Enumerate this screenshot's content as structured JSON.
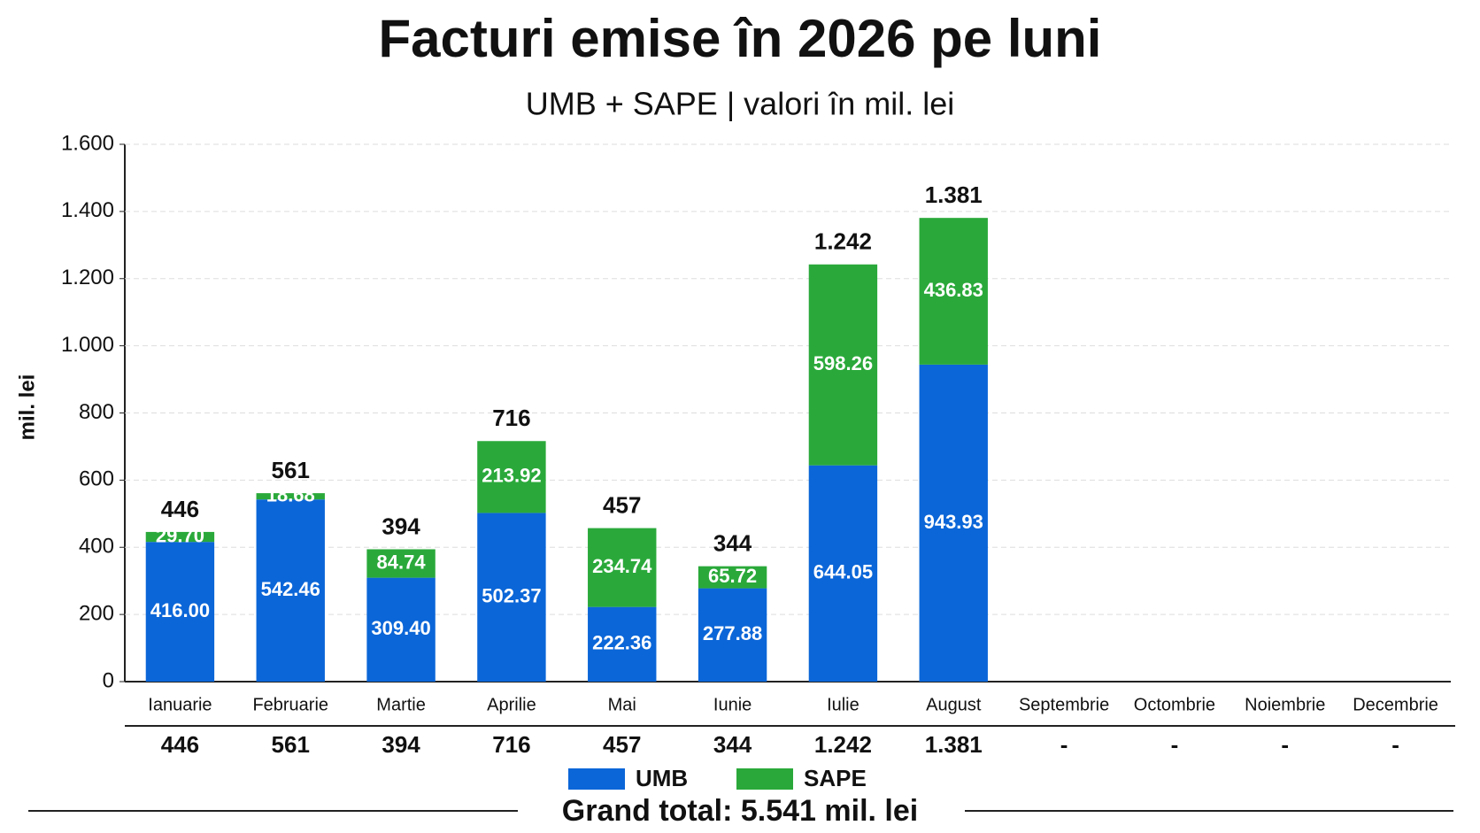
{
  "chart_data": {
    "type": "stacked_bar",
    "title": "Facturi emise în 2026 pe luni",
    "subtitle": "UMB + SAPE | valori în mil. lei",
    "y_label": "mil. lei",
    "categories": [
      "Ianuarie",
      "Februarie",
      "Martie",
      "Aprilie",
      "Mai",
      "Iunie",
      "Iulie",
      "August",
      "Septembrie",
      "Octombrie",
      "Noiembrie",
      "Decembrie"
    ],
    "series": [
      {
        "name": "UMB",
        "color": "#0b66d8",
        "values": [
          416.0,
          542.46,
          309.4,
          502.37,
          222.36,
          277.88,
          644.05,
          943.93,
          null,
          null,
          null,
          null
        ],
        "value_labels": [
          "416.00",
          "542.46",
          "309.40",
          "502.37",
          "222.36",
          "277.88",
          "644.05",
          "943.93",
          null,
          null,
          null,
          null
        ]
      },
      {
        "name": "SAPE",
        "color": "#2aa93a",
        "values": [
          29.7,
          18.68,
          84.74,
          213.92,
          234.74,
          65.72,
          598.26,
          436.83,
          null,
          null,
          null,
          null
        ],
        "value_labels": [
          "29.70",
          "18.68",
          "84.74",
          "213.92",
          "234.74",
          "65.72",
          "598.26",
          "436.83",
          null,
          null,
          null,
          null
        ]
      }
    ],
    "totals": {
      "values": [
        446,
        561,
        394,
        716,
        457,
        344,
        1242,
        1381,
        null,
        null,
        null,
        null
      ],
      "value_labels": [
        "446",
        "561",
        "394",
        "716",
        "457",
        "344",
        "1.242",
        "1.381",
        "-",
        "-",
        "-",
        "-"
      ]
    },
    "ylim": [
      0,
      1600
    ],
    "yticks": [
      0,
      200,
      400,
      600,
      800,
      {
        "value": 1000,
        "label": "1.000"
      },
      {
        "value": 1200,
        "label": "1.200"
      },
      {
        "value": 1400,
        "label": "1.400"
      },
      {
        "value": 1600,
        "label": "1.600"
      }
    ],
    "grid": true,
    "grand_total": "Grand total: 5.541 mil. lei"
  }
}
